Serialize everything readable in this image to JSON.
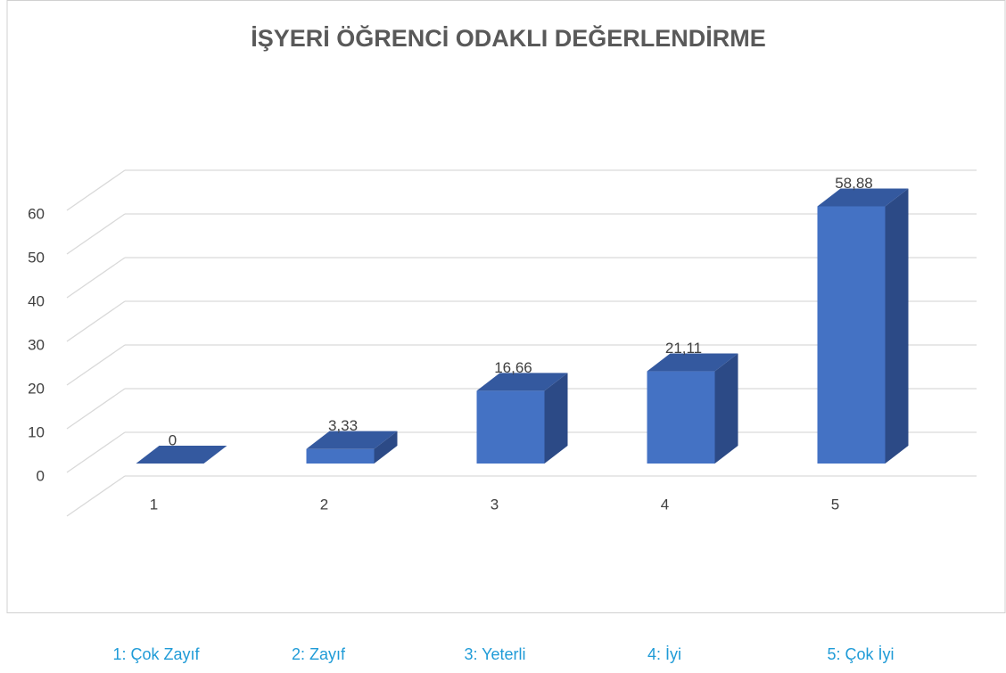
{
  "chart_data": {
    "type": "bar3d",
    "title": "İŞYERİ ÖĞRENCİ ODAKLI DEĞERLENDİRME",
    "categories": [
      "1",
      "2",
      "3",
      "4",
      "5"
    ],
    "values": [
      0,
      3.33,
      16.66,
      21.11,
      58.88
    ],
    "value_labels": [
      "0",
      "3,33",
      "16,66",
      "21,11",
      "58,88"
    ],
    "color": "#4472c4",
    "ylim": [
      0,
      70
    ],
    "yticks": [
      0,
      10,
      20,
      30,
      40,
      50,
      60
    ],
    "grid": true,
    "notes": [
      "1: Çok Zayıf",
      "2: Zayıf",
      "3: Yeterli",
      "4: İyi",
      "5: Çok İyi"
    ],
    "notes_color": "#1f9bd7"
  }
}
